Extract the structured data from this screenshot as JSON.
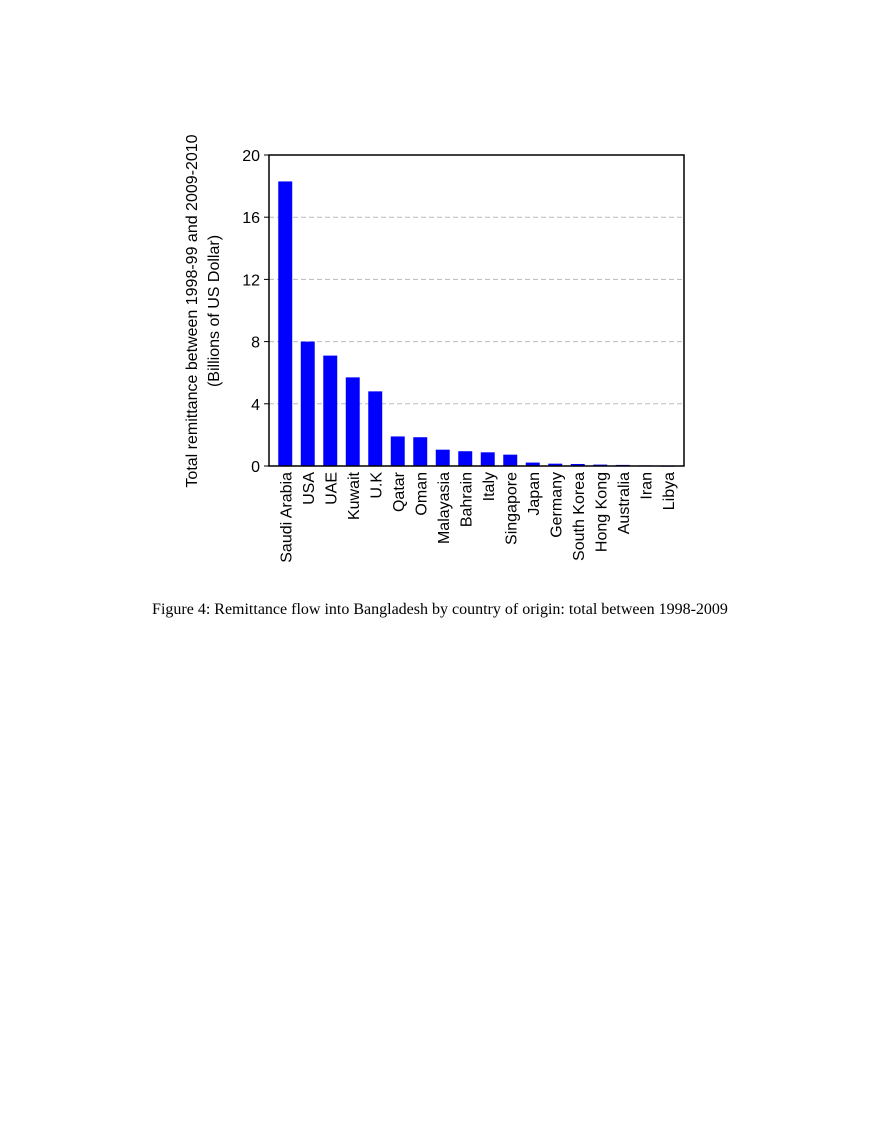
{
  "chart_data": {
    "type": "bar",
    "categories": [
      "Saudi Arabia",
      "USA",
      "UAE",
      "Kuwait",
      "U.K",
      "Qatar",
      "Oman",
      "Malayasia",
      "Bahrain",
      "Italy",
      "Singapore",
      "Japan",
      "Germany",
      "South Korea",
      "Hong Kong",
      "Australia",
      "Iran",
      "Libya"
    ],
    "values": [
      18.3,
      8.0,
      7.1,
      5.7,
      4.8,
      1.9,
      1.85,
      1.05,
      0.95,
      0.88,
      0.73,
      0.22,
      0.15,
      0.13,
      0.09,
      0.07,
      0.04,
      0.02
    ],
    "ylabel_line1": "Total remittance between 1998-99 and 2009-2010",
    "ylabel_line2": "(Billions of US Dollar)",
    "xlabel": "",
    "ylim": [
      0,
      20
    ],
    "yticks": [
      "0",
      "4",
      "8",
      "12",
      "16",
      "20"
    ],
    "grid": true,
    "bar_color": "#0000ff"
  },
  "caption": "Figure 4: Remittance flow into Bangladesh by country of origin: total between 1998-2009"
}
